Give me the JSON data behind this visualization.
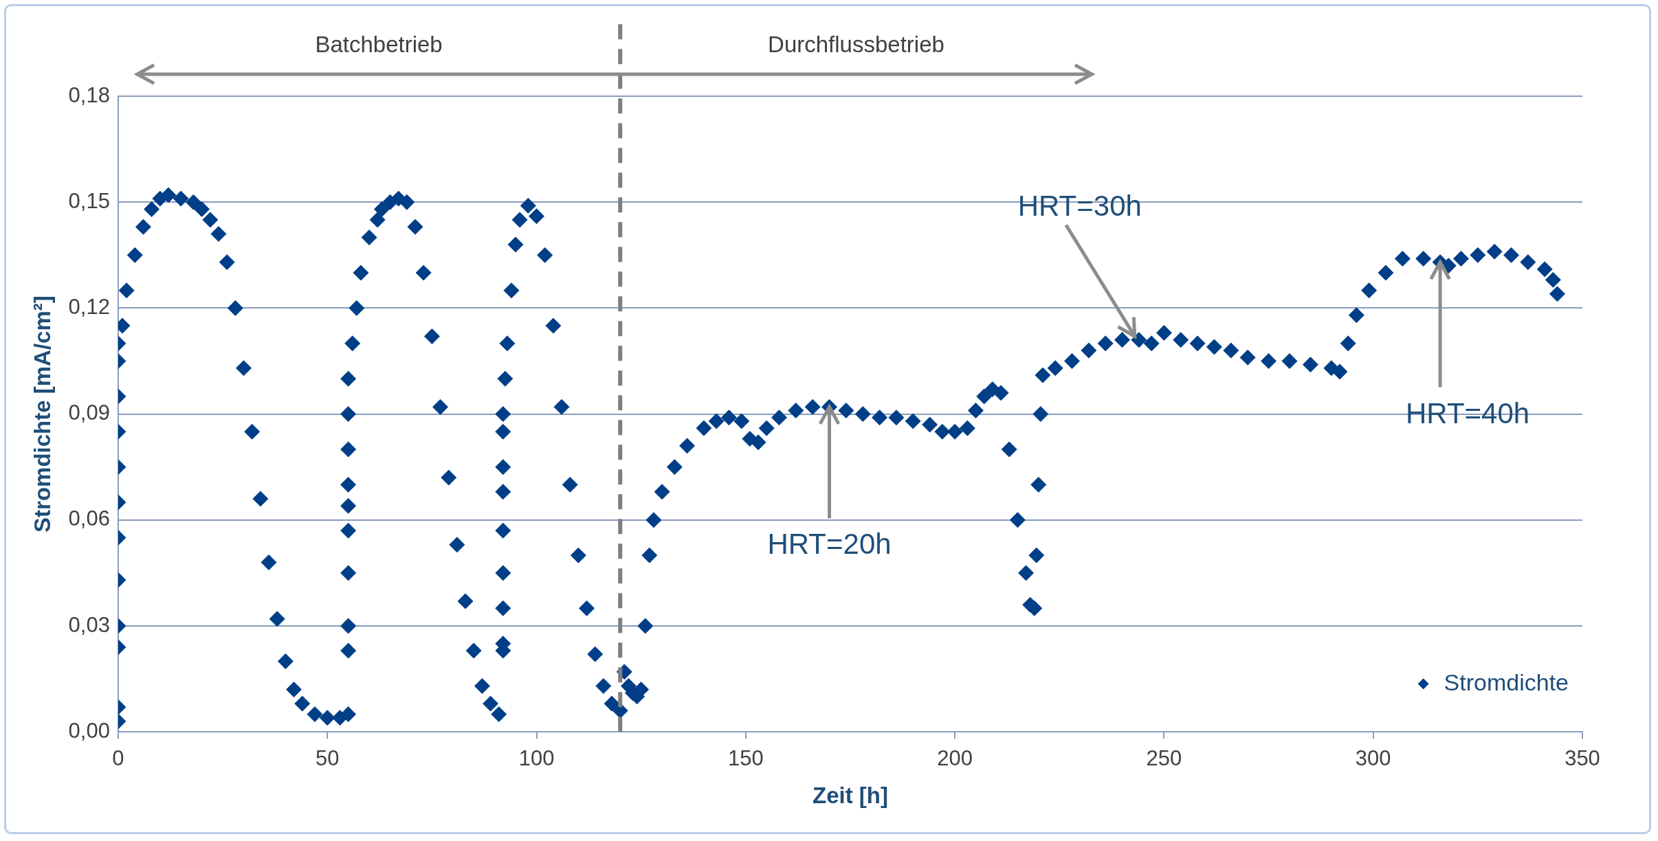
{
  "chart_data": {
    "type": "scatter",
    "xlabel": "Zeit [h]",
    "ylabel": "Stromdichte [mA/cm²]",
    "xlim": [
      0,
      350
    ],
    "xticks": [
      0,
      50,
      100,
      150,
      200,
      250,
      300,
      350
    ],
    "ylim": [
      0,
      0.18
    ],
    "yticks": [
      {
        "value": 0,
        "label": "0,00"
      },
      {
        "value": 0.03,
        "label": "0,03"
      },
      {
        "value": 0.06,
        "label": "0,06"
      },
      {
        "value": 0.09,
        "label": "0,09"
      },
      {
        "value": 0.12,
        "label": "0,12"
      },
      {
        "value": 0.15,
        "label": "0,15"
      },
      {
        "value": 0.18,
        "label": "0,18"
      }
    ],
    "grid": "y",
    "legend": "bottom right",
    "marker": "diamond",
    "ref_lines": [
      {
        "axis": "x",
        "value": 120,
        "color": "#7f7f7f",
        "line_style": "dashed"
      }
    ],
    "annotations": [
      "Batchbetrieb",
      "Durchflussbetrieb",
      {
        "text": "HRT=20h",
        "x": 170,
        "y": 0.092
      },
      {
        "text": "HRT=30h",
        "x": 243,
        "y": 0.112
      },
      {
        "text": "HRT=40h",
        "x": 316,
        "y": 0.133
      }
    ],
    "series": [
      {
        "name": "Stromdichte",
        "color": "#003f87",
        "x": [
          0,
          0,
          0,
          0,
          0,
          0,
          0,
          0,
          0,
          0,
          0,
          0,
          1,
          2,
          4,
          6,
          8,
          10,
          12,
          15,
          18,
          20,
          22,
          24,
          26,
          28,
          30,
          32,
          34,
          36,
          38,
          40,
          42,
          44,
          47,
          50,
          53,
          55,
          55,
          55,
          55,
          55,
          55,
          55,
          55,
          55,
          55,
          56,
          57,
          58,
          60,
          62,
          63,
          65,
          67,
          69,
          71,
          73,
          75,
          77,
          79,
          81,
          83,
          85,
          87,
          89,
          91,
          92,
          92,
          92,
          92,
          92,
          92,
          92,
          92,
          92,
          92.5,
          93,
          94,
          95,
          96,
          98,
          100,
          102,
          104,
          106,
          108,
          110,
          112,
          114,
          116,
          118,
          120,
          121,
          122,
          123,
          124,
          125,
          126,
          127,
          128,
          130,
          133,
          136,
          140,
          143,
          146,
          149,
          151,
          153,
          155,
          158,
          162,
          166,
          170,
          174,
          178,
          182,
          186,
          190,
          194,
          197,
          200,
          203,
          205,
          207,
          209,
          211,
          213,
          215,
          217,
          218,
          219,
          219.5,
          220,
          220.5,
          221,
          224,
          228,
          232,
          236,
          240,
          244,
          247,
          250,
          254,
          258,
          262,
          266,
          270,
          275,
          280,
          285,
          290,
          292,
          294,
          296,
          299,
          303,
          307,
          312,
          316,
          318,
          321,
          325,
          329,
          333,
          337,
          341,
          343,
          344
        ],
        "values": [
          0.003,
          0.007,
          0.024,
          0.03,
          0.043,
          0.055,
          0.065,
          0.075,
          0.085,
          0.095,
          0.105,
          0.11,
          0.115,
          0.125,
          0.135,
          0.143,
          0.148,
          0.151,
          0.152,
          0.151,
          0.15,
          0.148,
          0.145,
          0.141,
          0.133,
          0.12,
          0.103,
          0.085,
          0.066,
          0.048,
          0.032,
          0.02,
          0.012,
          0.008,
          0.005,
          0.004,
          0.004,
          0.005,
          0.023,
          0.03,
          0.045,
          0.057,
          0.064,
          0.07,
          0.08,
          0.09,
          0.1,
          0.11,
          0.12,
          0.13,
          0.14,
          0.145,
          0.148,
          0.15,
          0.151,
          0.15,
          0.143,
          0.13,
          0.112,
          0.092,
          0.072,
          0.053,
          0.037,
          0.023,
          0.013,
          0.008,
          0.005,
          0.023,
          0.025,
          0.035,
          0.045,
          0.057,
          0.068,
          0.075,
          0.085,
          0.09,
          0.1,
          0.11,
          0.125,
          0.138,
          0.145,
          0.149,
          0.146,
          0.135,
          0.115,
          0.092,
          0.07,
          0.05,
          0.035,
          0.022,
          0.013,
          0.008,
          0.006,
          0.017,
          0.013,
          0.011,
          0.01,
          0.012,
          0.03,
          0.05,
          0.06,
          0.068,
          0.075,
          0.081,
          0.086,
          0.088,
          0.089,
          0.088,
          0.083,
          0.082,
          0.086,
          0.089,
          0.091,
          0.092,
          0.092,
          0.091,
          0.09,
          0.089,
          0.089,
          0.088,
          0.087,
          0.085,
          0.085,
          0.086,
          0.091,
          0.095,
          0.097,
          0.096,
          0.08,
          0.06,
          0.045,
          0.036,
          0.035,
          0.05,
          0.07,
          0.09,
          0.101,
          0.103,
          0.105,
          0.108,
          0.11,
          0.111,
          0.111,
          0.11,
          0.113,
          0.111,
          0.11,
          0.109,
          0.108,
          0.106,
          0.105,
          0.105,
          0.104,
          0.103,
          0.102,
          0.11,
          0.118,
          0.125,
          0.13,
          0.134,
          0.134,
          0.133,
          0.132,
          0.134,
          0.135,
          0.136,
          0.135,
          0.133,
          0.131,
          0.128,
          0.124
        ]
      }
    ]
  }
}
